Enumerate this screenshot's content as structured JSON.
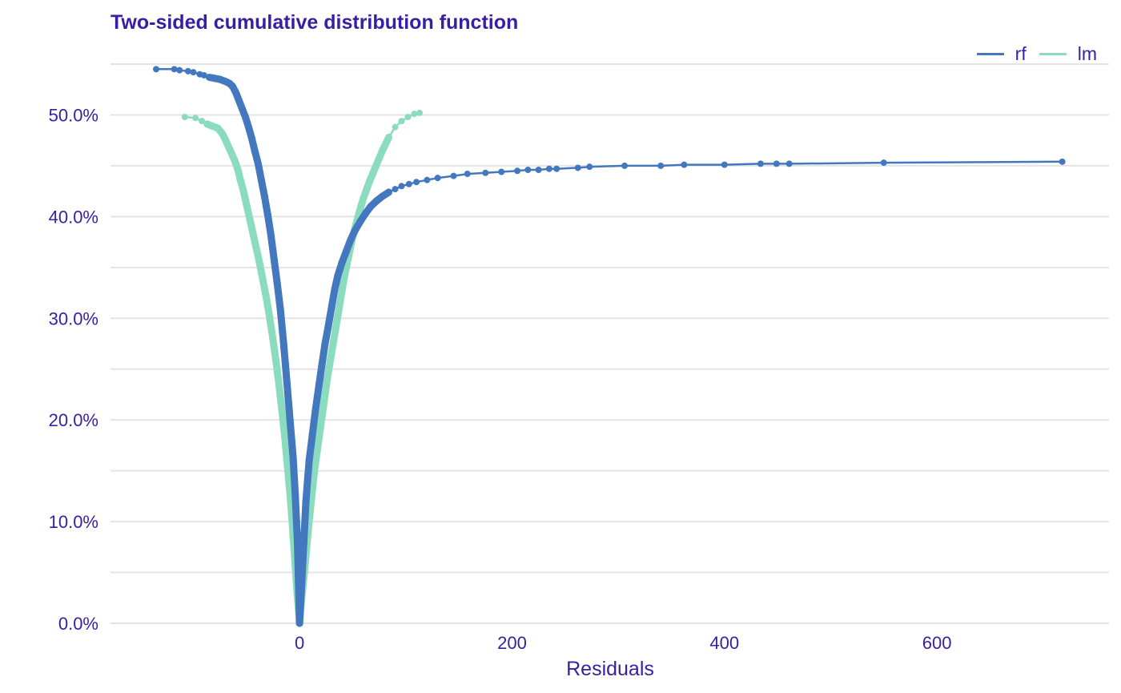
{
  "chart_data": {
    "type": "line",
    "title": "Two-sided cumulative distribution function",
    "xlabel": "Residuals",
    "ylabel": "",
    "xlim": [
      -178,
      762
    ],
    "ylim": [
      0,
      0.55
    ],
    "x_ticks": [
      0,
      200,
      400,
      600
    ],
    "x_tick_labels": [
      "0",
      "200",
      "400",
      "600"
    ],
    "y_ticks": [
      0,
      0.1,
      0.2,
      0.3,
      0.4,
      0.5
    ],
    "y_tick_labels": [
      "0.0%",
      "10.0%",
      "20.0%",
      "30.0%",
      "40.0%",
      "50.0%"
    ],
    "grid": true,
    "legend_position": "top-right",
    "series": [
      {
        "name": "rf",
        "color": "#4378bf",
        "points": [
          [
            -135,
            0.545
          ],
          [
            -118,
            0.545
          ],
          [
            -113,
            0.544
          ],
          [
            -105,
            0.543
          ],
          [
            -100,
            0.542
          ],
          [
            -94,
            0.54
          ],
          [
            -90,
            0.539
          ],
          [
            -85,
            0.537
          ],
          [
            -80,
            0.536
          ],
          [
            -75,
            0.535
          ],
          [
            -70,
            0.533
          ],
          [
            -66,
            0.531
          ],
          [
            -63,
            0.528
          ],
          [
            -60,
            0.522
          ],
          [
            -57,
            0.514
          ],
          [
            -54,
            0.506
          ],
          [
            -51,
            0.498
          ],
          [
            -48,
            0.488
          ],
          [
            -45,
            0.477
          ],
          [
            -42,
            0.464
          ],
          [
            -39,
            0.452
          ],
          [
            -36,
            0.436
          ],
          [
            -33,
            0.42
          ],
          [
            -30,
            0.402
          ],
          [
            -27,
            0.382
          ],
          [
            -24,
            0.358
          ],
          [
            -21,
            0.334
          ],
          [
            -18,
            0.308
          ],
          [
            -15,
            0.275
          ],
          [
            -12,
            0.238
          ],
          [
            -9,
            0.2
          ],
          [
            -6,
            0.162
          ],
          [
            -4,
            0.125
          ],
          [
            -2,
            0.08
          ],
          [
            -1,
            0.04
          ],
          [
            0,
            0.0
          ],
          [
            2,
            0.04
          ],
          [
            4,
            0.08
          ],
          [
            6,
            0.12
          ],
          [
            9,
            0.16
          ],
          [
            12,
            0.185
          ],
          [
            15,
            0.21
          ],
          [
            18,
            0.232
          ],
          [
            21,
            0.254
          ],
          [
            24,
            0.275
          ],
          [
            27,
            0.292
          ],
          [
            30,
            0.31
          ],
          [
            33,
            0.328
          ],
          [
            36,
            0.342
          ],
          [
            40,
            0.355
          ],
          [
            44,
            0.366
          ],
          [
            48,
            0.377
          ],
          [
            52,
            0.386
          ],
          [
            57,
            0.395
          ],
          [
            62,
            0.403
          ],
          [
            67,
            0.41
          ],
          [
            72,
            0.415
          ],
          [
            78,
            0.42
          ],
          [
            84,
            0.424
          ],
          [
            90,
            0.427
          ],
          [
            96,
            0.43
          ],
          [
            103,
            0.432
          ],
          [
            110,
            0.434
          ],
          [
            120,
            0.436
          ],
          [
            130,
            0.438
          ],
          [
            145,
            0.44
          ],
          [
            158,
            0.442
          ],
          [
            175,
            0.443
          ],
          [
            190,
            0.444
          ],
          [
            205,
            0.445
          ],
          [
            215,
            0.446
          ],
          [
            225,
            0.446
          ],
          [
            235,
            0.447
          ],
          [
            242,
            0.447
          ],
          [
            262,
            0.448
          ],
          [
            273,
            0.449
          ],
          [
            306,
            0.45
          ],
          [
            340,
            0.45
          ],
          [
            362,
            0.451
          ],
          [
            400,
            0.451
          ],
          [
            434,
            0.452
          ],
          [
            449,
            0.452
          ],
          [
            461,
            0.452
          ],
          [
            550,
            0.453
          ],
          [
            718,
            0.454
          ]
        ]
      },
      {
        "name": "lm",
        "color": "#8bdcbe",
        "points": [
          [
            -108,
            0.498
          ],
          [
            -98,
            0.497
          ],
          [
            -92,
            0.494
          ],
          [
            -87,
            0.491
          ],
          [
            -82,
            0.489
          ],
          [
            -77,
            0.487
          ],
          [
            -73,
            0.482
          ],
          [
            -70,
            0.476
          ],
          [
            -67,
            0.469
          ],
          [
            -64,
            0.462
          ],
          [
            -61,
            0.455
          ],
          [
            -58,
            0.446
          ],
          [
            -56,
            0.437
          ],
          [
            -53,
            0.426
          ],
          [
            -50,
            0.412
          ],
          [
            -47,
            0.398
          ],
          [
            -44,
            0.384
          ],
          [
            -41,
            0.37
          ],
          [
            -38,
            0.356
          ],
          [
            -35,
            0.34
          ],
          [
            -32,
            0.324
          ],
          [
            -29,
            0.306
          ],
          [
            -26,
            0.286
          ],
          [
            -23,
            0.264
          ],
          [
            -20,
            0.24
          ],
          [
            -17,
            0.213
          ],
          [
            -14,
            0.184
          ],
          [
            -11,
            0.15
          ],
          [
            -8,
            0.115
          ],
          [
            -6,
            0.085
          ],
          [
            -4,
            0.055
          ],
          [
            -2,
            0.025
          ],
          [
            0,
            0.0
          ],
          [
            2,
            0.025
          ],
          [
            5,
            0.055
          ],
          [
            8,
            0.09
          ],
          [
            11,
            0.12
          ],
          [
            14,
            0.15
          ],
          [
            18,
            0.18
          ],
          [
            22,
            0.21
          ],
          [
            26,
            0.24
          ],
          [
            30,
            0.265
          ],
          [
            34,
            0.29
          ],
          [
            38,
            0.315
          ],
          [
            42,
            0.34
          ],
          [
            46,
            0.36
          ],
          [
            50,
            0.38
          ],
          [
            55,
            0.4
          ],
          [
            60,
            0.418
          ],
          [
            66,
            0.435
          ],
          [
            72,
            0.45
          ],
          [
            78,
            0.465
          ],
          [
            84,
            0.478
          ],
          [
            90,
            0.488
          ],
          [
            96,
            0.494
          ],
          [
            102,
            0.498
          ],
          [
            108,
            0.501
          ],
          [
            113,
            0.502
          ]
        ]
      }
    ]
  }
}
